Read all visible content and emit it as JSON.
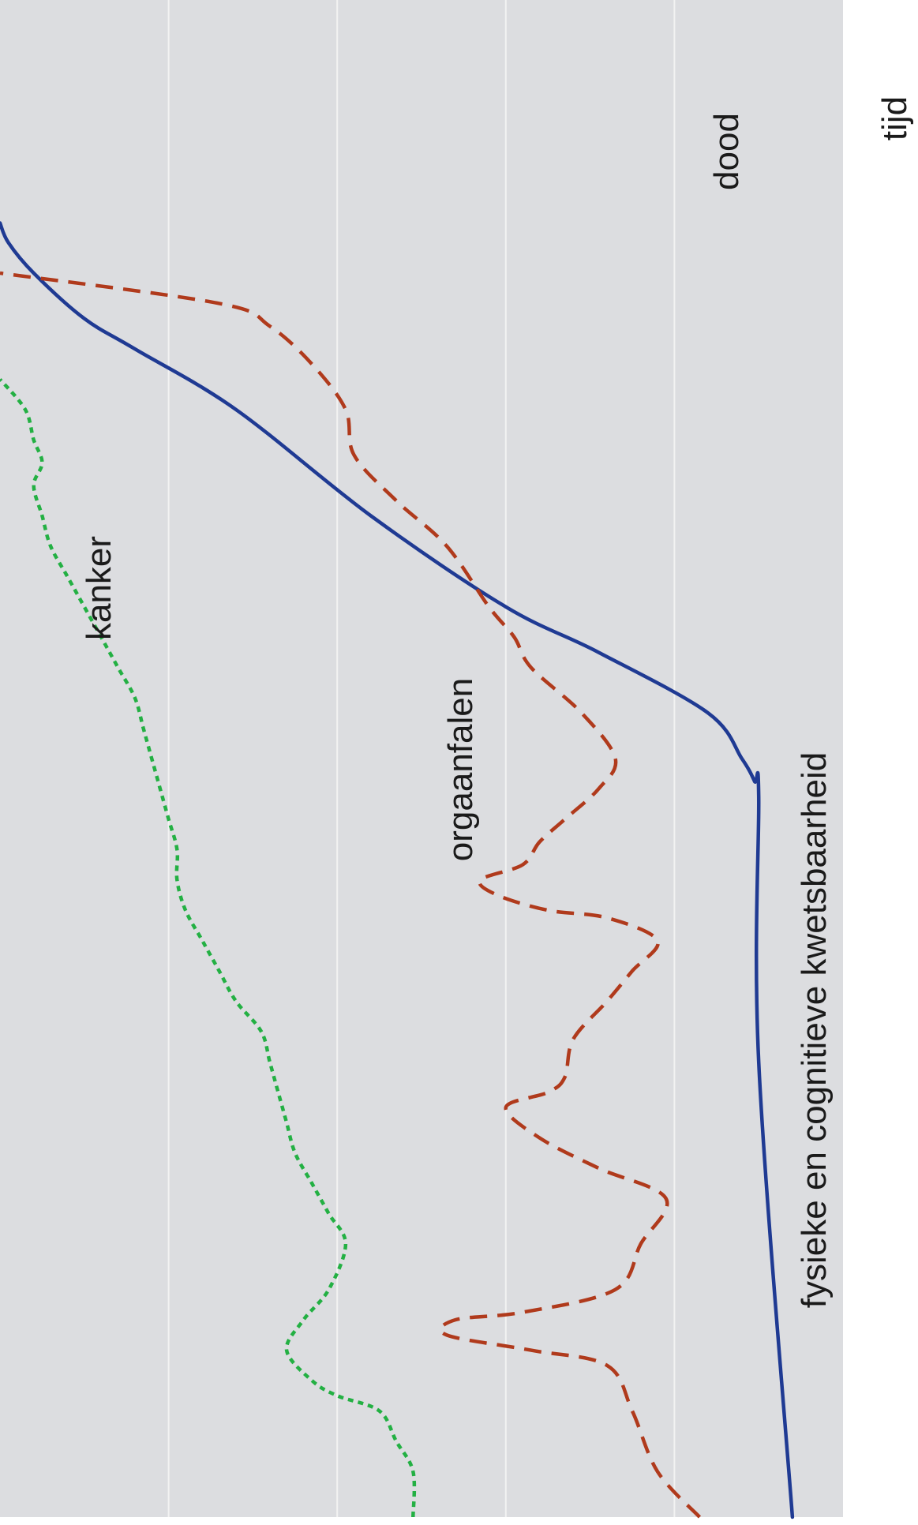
{
  "chart_data": {
    "type": "line",
    "orientation": "rotated-90-clockwise",
    "title": "",
    "xlabel": "tijd",
    "ylabel": "",
    "xlim": [
      0,
      100
    ],
    "ylim": [
      0,
      100
    ],
    "grid": true,
    "legend": "none",
    "colors": {
      "plot_background": "#dcdde0",
      "gridline": "#f2f2f2",
      "kanker": "#1f3a93",
      "orgaanfalen": "#b03a1c",
      "fysieke": "#23b043",
      "annotation_arrow": "#1a1a1a"
    },
    "series": [
      {
        "name": "kanker",
        "style": "solid",
        "x": [
          0,
          30,
          47.5,
          48.5,
          50,
          53,
          57,
          60,
          66,
          73,
          77,
          79,
          82,
          84,
          85.3
        ],
        "y": [
          94,
          90,
          90,
          89.5,
          88,
          84,
          71,
          60,
          44,
          28,
          16,
          10,
          4,
          1,
          0
        ]
      },
      {
        "name": "orgaanfalen",
        "style": "dashed",
        "x": [
          0,
          3,
          7,
          10,
          11,
          12,
          13,
          13.5,
          15,
          18,
          21,
          23,
          25,
          27,
          28,
          29,
          31.5,
          34,
          36,
          38,
          39.5,
          40,
          41,
          42,
          43,
          44.5,
          46,
          48,
          50,
          53,
          56,
          58,
          60,
          64,
          67,
          70,
          73,
          76,
          78.5,
          80,
          82
        ],
        "y": [
          83,
          78,
          75,
          72,
          63,
          53,
          54,
          62,
          73,
          76,
          79,
          71,
          64,
          60,
          65,
          67,
          68,
          72,
          75,
          78,
          72,
          65,
          59,
          57,
          62,
          64,
          67,
          71,
          73,
          69,
          63,
          61,
          58,
          53,
          47,
          42,
          41,
          37,
          32,
          26,
          0
        ]
      },
      {
        "name": "fysieke en cognitieve kwetsbaarheid",
        "style": "dotted",
        "x": [
          0,
          3,
          5,
          7,
          8,
          9,
          11,
          13,
          15,
          18,
          20,
          22,
          24,
          26,
          28,
          30,
          32,
          34,
          36,
          38,
          40,
          42,
          44,
          46,
          48,
          50,
          52,
          54,
          56,
          58,
          60,
          62,
          64,
          66,
          68,
          69.5,
          71,
          73,
          75
        ],
        "y": [
          49,
          49,
          47,
          45,
          40,
          37,
          34,
          36,
          39,
          41,
          39,
          37,
          35,
          34,
          33,
          32,
          31,
          28,
          26,
          24,
          22,
          21,
          21,
          20,
          19,
          18,
          17,
          16,
          14,
          12,
          10,
          8,
          6,
          5,
          4,
          5,
          4,
          3,
          0
        ]
      }
    ],
    "annotations": [
      {
        "text": "dood",
        "target_series": "kanker",
        "target_x": 85.3,
        "target_y": 0
      }
    ]
  }
}
